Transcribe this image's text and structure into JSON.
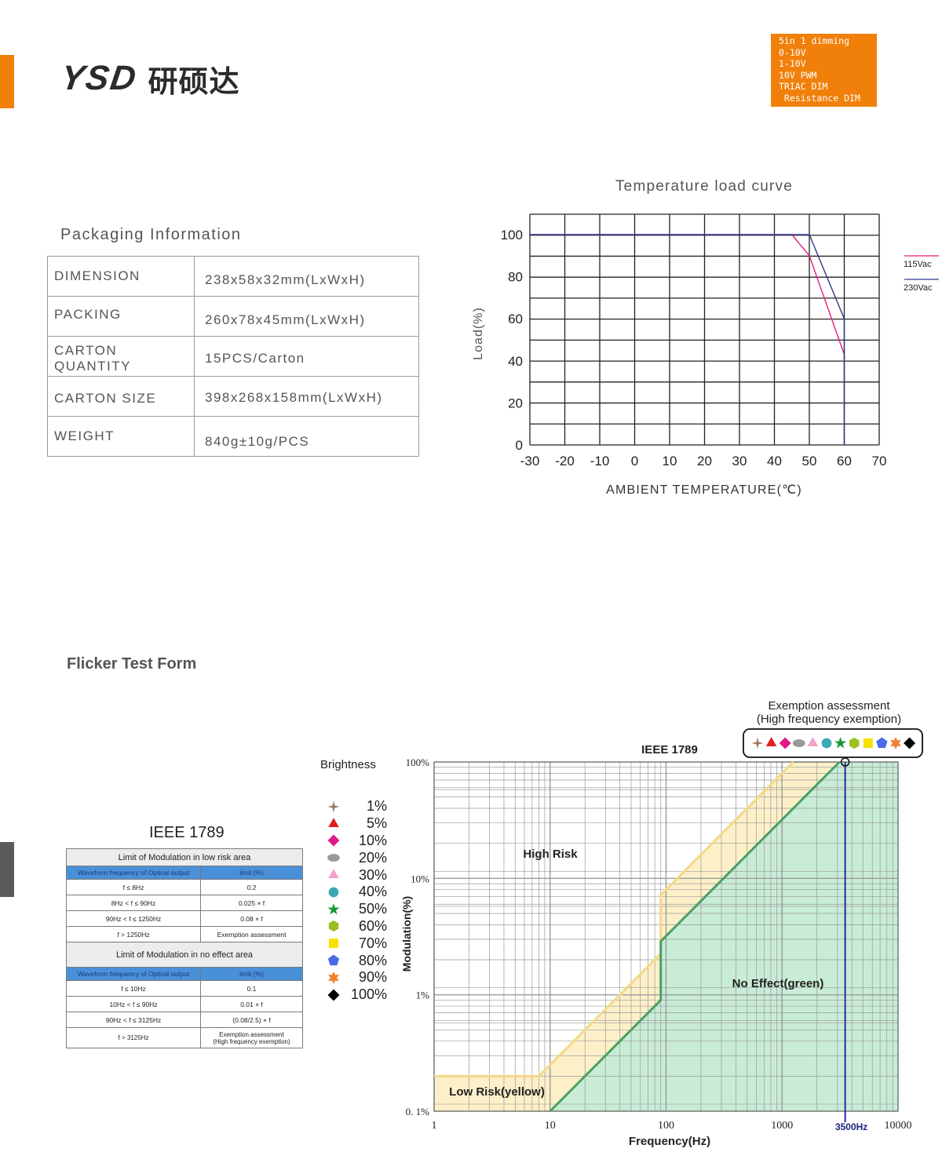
{
  "header": {
    "logo_latin": "YSD",
    "logo_cjk": "研硕达",
    "dimming_badge": [
      "5in 1 dimming",
      "0-10V",
      "1-10V",
      "10V PWM",
      "TRIAC DIM",
      " Resistance DIM"
    ]
  },
  "packaging": {
    "title": "Packaging Information",
    "rows": [
      {
        "label": "DIMENSION",
        "value": "238x58x32mm(LxWxH)"
      },
      {
        "label": "PACKING",
        "value": "260x78x45mm(LxWxH)"
      },
      {
        "label": "CARTON QUANTITY",
        "value": "15PCS/Carton"
      },
      {
        "label": "CARTON SIZE",
        "value": "398x268x158mm(LxWxH)"
      },
      {
        "label": "WEIGHT",
        "value": "840g±10g/PCS"
      }
    ]
  },
  "temperature_chart": {
    "title": "Temperature load curve",
    "xlabel": "AMBIENT TEMPERATURE(℃)",
    "ylabel": "Load(%)",
    "legend": [
      "115Vac",
      "230Vac"
    ],
    "colors": {
      "115Vac": "#e8197c",
      "230Vac": "#2e3a8c",
      "grid": "#222222"
    }
  },
  "chart_data": [
    {
      "type": "line",
      "title": "Temperature load curve",
      "xlabel": "AMBIENT TEMPERATURE(℃)",
      "ylabel": "Load(%)",
      "xlim": [
        -30,
        70
      ],
      "ylim": [
        0,
        100
      ],
      "x_ticks": [
        "-30",
        "-20",
        "-10",
        "0",
        "10",
        "20",
        "30",
        "40",
        "50",
        "60",
        "70"
      ],
      "y_ticks": [
        "0",
        "20",
        "40",
        "60",
        "80",
        "100"
      ],
      "grid": true,
      "legend_position": "right",
      "series": [
        {
          "name": "115Vac",
          "x": [
            -30,
            45,
            50,
            60,
            60
          ],
          "y": [
            100,
            100,
            90,
            43,
            0
          ]
        },
        {
          "name": "230Vac",
          "x": [
            -30,
            50,
            60,
            60
          ],
          "y": [
            100,
            100,
            60,
            0
          ]
        }
      ]
    },
    {
      "type": "area",
      "title": "IEEE 1789",
      "xlabel": "Frequency(Hz)",
      "ylabel": "Modulation(%)",
      "x_scale": "log",
      "y_scale": "log",
      "xlim": [
        1,
        10000
      ],
      "ylim": [
        0.1,
        100
      ],
      "x_ticks": [
        "1",
        "10",
        "100",
        "1000",
        "10000"
      ],
      "y_ticks": [
        "0. 1%",
        "1%",
        "10%",
        "100%"
      ],
      "grid": true,
      "regions": [
        "High Risk",
        "Low Risk(yellow)",
        "No Effect(green)"
      ],
      "series": [
        {
          "name": "Low Risk(yellow)",
          "x": [
            1,
            8,
            90,
            90,
            1250
          ],
          "y": [
            0.2,
            0.2,
            2.25,
            7.2,
            100
          ]
        },
        {
          "name": "No Effect(green)",
          "x": [
            10,
            90,
            90,
            3125
          ],
          "y": [
            0.1,
            0.9,
            2.88,
            100
          ]
        }
      ],
      "marker_x": 3500,
      "marker_label": "3500Hz",
      "exemption_title": [
        "Exemption assessment",
        "(High frequency exemption)"
      ]
    }
  ],
  "flicker": {
    "title": "Flicker Test Form",
    "ieee_title": "IEEE 1789",
    "low_risk_caption": "Limit of Modulation in low risk area",
    "no_effect_caption": "Limit of Modulation in no effect area",
    "col_freq": "Waveform frequency of Optical output",
    "col_limit": "limit (%)",
    "low_risk_rows": [
      [
        "f  ≤ 8Hz",
        "0.2"
      ],
      [
        "8Hz <  f  ≤ 90Hz",
        "0.025 × f"
      ],
      [
        "90Hz <  f  ≤ 1250Hz",
        "0.08 × f"
      ],
      [
        "f  > 1250Hz",
        "Exemption assessment"
      ]
    ],
    "no_effect_rows": [
      [
        "f  ≤ 10Hz",
        "0.1"
      ],
      [
        "10Hz < f  ≤ 90Hz",
        "0.01 × f"
      ],
      [
        "90Hz <  f  ≤ 3125Hz",
        "(0.08/2.5)  ×     f"
      ],
      [
        "f  > 3125Hz",
        "Exemption assessment\n(High frequency exemption)"
      ]
    ],
    "brightness_title": "Brightness",
    "brightness": [
      {
        "label": "1%",
        "icon": "star4-icon",
        "color": "#a0785a"
      },
      {
        "label": "5%",
        "icon": "triangle-icon",
        "color": "#e02020"
      },
      {
        "label": "10%",
        "icon": "diamond-icon",
        "color": "#e0198a"
      },
      {
        "label": "20%",
        "icon": "ellipse-icon",
        "color": "#999999"
      },
      {
        "label": "30%",
        "icon": "triangle-icon",
        "color": "#f4a0c8"
      },
      {
        "label": "40%",
        "icon": "circle-icon",
        "color": "#3ba8b8"
      },
      {
        "label": "50%",
        "icon": "star-icon",
        "color": "#1a9a3a"
      },
      {
        "label": "60%",
        "icon": "hexagon-icon",
        "color": "#9ac020"
      },
      {
        "label": "70%",
        "icon": "square-icon",
        "color": "#f8e000"
      },
      {
        "label": "80%",
        "icon": "pentagon-icon",
        "color": "#4a6ae8"
      },
      {
        "label": "90%",
        "icon": "star6-icon",
        "color": "#f08030"
      },
      {
        "label": "100%",
        "icon": "diamond-icon",
        "color": "#000000"
      }
    ]
  }
}
